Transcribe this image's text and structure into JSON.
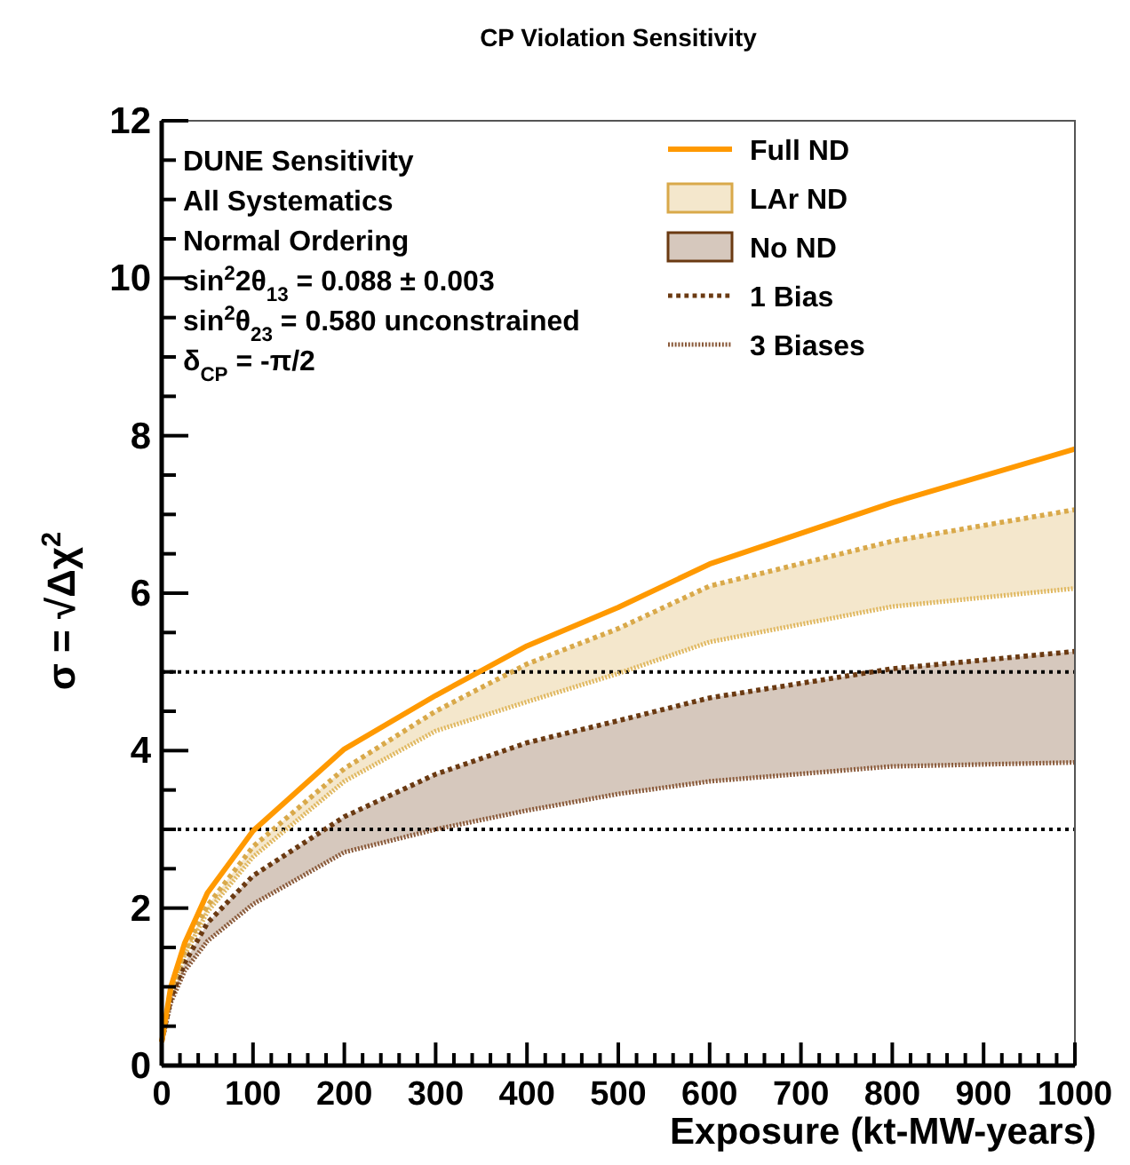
{
  "chart_data": {
    "type": "line",
    "title": "CP Violation Sensitivity",
    "xlabel": "Exposure (kt-MW-years)",
    "ylabel": "σ = √Δχ$^{2}$",
    "annotations": [
      "DUNE Sensitivity",
      "All Systematics",
      "Normal Ordering",
      "sin$^{2}$2θ$_{13}$ = 0.088 ± 0.003",
      "sin$^{2}$θ$_{23}$ = 0.580 unconstrained",
      "δ$_{CP}$ = -π/2",
      "1 Bias"
    ],
    "x": [
      0,
      10,
      25,
      50,
      100,
      200,
      300,
      400,
      500,
      600,
      800,
      1000
    ],
    "series": [
      {
        "name": "Full ND",
        "color": "#ff9900",
        "line_style": "solid",
        "values": [
          0.3,
          1.0,
          1.55,
          2.19,
          2.98,
          4.02,
          4.7,
          5.33,
          5.82,
          6.37,
          7.15,
          7.83
        ]
      },
      {
        "name": "LAr ND",
        "color": "#d9a94a",
        "line_style": "dashed",
        "values": [
          0.3,
          0.95,
          1.45,
          2.03,
          2.78,
          3.77,
          4.5,
          5.1,
          5.55,
          6.09,
          6.66,
          7.06
        ],
        "lower": [
          0.3,
          0.9,
          1.4,
          1.95,
          2.65,
          3.61,
          4.25,
          4.62,
          4.98,
          5.38,
          5.83,
          6.06
        ],
        "upper": [
          0.3,
          0.95,
          1.45,
          2.03,
          2.78,
          3.77,
          4.5,
          5.1,
          5.55,
          6.09,
          6.66,
          7.06
        ]
      },
      {
        "name": "No ND",
        "color": "#6b3a12",
        "line_style": "dashed",
        "values": [
          0.3,
          0.85,
          1.3,
          1.81,
          2.41,
          3.16,
          3.7,
          4.1,
          4.38,
          4.67,
          5.04,
          5.26
        ],
        "lower": [
          0.3,
          0.8,
          1.2,
          1.58,
          2.05,
          2.71,
          3.0,
          3.24,
          3.45,
          3.61,
          3.8,
          3.85
        ],
        "upper": [
          0.3,
          0.85,
          1.3,
          1.81,
          2.41,
          3.16,
          3.7,
          4.1,
          4.38,
          4.67,
          5.04,
          5.26
        ]
      },
      {
        "name": "3 Biases",
        "color": "#8a5a3a",
        "line_style": "dotted",
        "values": [
          0.3,
          0.8,
          1.2,
          1.58,
          2.05,
          2.71,
          3.0,
          3.24,
          3.45,
          3.61,
          3.8,
          3.85
        ]
      },
      {
        "color": "#e0b860",
        "line_style": "dotted",
        "values": [
          0.3,
          0.9,
          1.4,
          1.95,
          2.65,
          3.61,
          4.25,
          4.62,
          4.98,
          5.38,
          5.83,
          6.06
        ]
      }
    ],
    "ref_lines": [
      {
        "axis": "y",
        "value": 5,
        "color": "#000000",
        "line_style": "dotted"
      },
      {
        "axis": "y",
        "value": 3,
        "color": "#000000",
        "line_style": "dotted"
      }
    ],
    "xlim": [
      0,
      1000
    ],
    "xticks": [
      0,
      {
        "value": 20,
        "label": null
      },
      {
        "value": 40,
        "label": null
      },
      {
        "value": 60,
        "label": null
      },
      {
        "value": 80,
        "label": null
      },
      100,
      {
        "value": 120,
        "label": null
      },
      {
        "value": 140,
        "label": null
      },
      {
        "value": 160,
        "label": null
      },
      {
        "value": 180,
        "label": null
      },
      200,
      {
        "value": 220,
        "label": null
      },
      {
        "value": 240,
        "label": null
      },
      {
        "value": 260,
        "label": null
      },
      {
        "value": 280,
        "label": null
      },
      300,
      {
        "value": 320,
        "label": null
      },
      {
        "value": 340,
        "label": null
      },
      {
        "value": 360,
        "label": null
      },
      {
        "value": 380,
        "label": null
      },
      400,
      {
        "value": 420,
        "label": null
      },
      {
        "value": 440,
        "label": null
      },
      {
        "value": 460,
        "label": null
      },
      {
        "value": 480,
        "label": null
      },
      500,
      {
        "value": 520,
        "label": null
      },
      {
        "value": 540,
        "label": null
      },
      {
        "value": 560,
        "label": null
      },
      {
        "value": 580,
        "label": null
      },
      600,
      {
        "value": 620,
        "label": null
      },
      {
        "value": 640,
        "label": null
      },
      {
        "value": 660,
        "label": null
      },
      {
        "value": 680,
        "label": null
      },
      700,
      {
        "value": 720,
        "label": null
      },
      {
        "value": 740,
        "label": null
      },
      {
        "value": 760,
        "label": null
      },
      {
        "value": 780,
        "label": null
      },
      800,
      {
        "value": 820,
        "label": null
      },
      {
        "value": 840,
        "label": null
      },
      {
        "value": 860,
        "label": null
      },
      {
        "value": 880,
        "label": null
      },
      900,
      {
        "value": 920,
        "label": null
      },
      {
        "value": 940,
        "label": null
      },
      {
        "value": 960,
        "label": null
      },
      {
        "value": 980,
        "label": null
      },
      1000
    ],
    "ylim": [
      0,
      12
    ],
    "yticks": [
      0,
      {
        "value": 0.5,
        "label": null
      },
      {
        "value": 1,
        "label": null
      },
      {
        "value": 1.5,
        "label": null
      },
      2,
      {
        "value": 2.5,
        "label": null
      },
      {
        "value": 3,
        "label": null
      },
      {
        "value": 3.5,
        "label": null
      },
      4,
      {
        "value": 4.5,
        "label": null
      },
      {
        "value": 5,
        "label": null
      },
      {
        "value": 5.5,
        "label": null
      },
      6,
      {
        "value": 6.5,
        "label": null
      },
      {
        "value": 7,
        "label": null
      },
      {
        "value": 7.5,
        "label": null
      },
      8,
      {
        "value": 8.5,
        "label": null
      },
      {
        "value": 9,
        "label": null
      },
      {
        "value": 9.5,
        "label": null
      },
      10,
      {
        "value": 10.5,
        "label": null
      },
      {
        "value": 11,
        "label": null
      },
      {
        "value": 11.5,
        "label": null
      },
      12
    ],
    "grid": false,
    "legend": "top right"
  }
}
